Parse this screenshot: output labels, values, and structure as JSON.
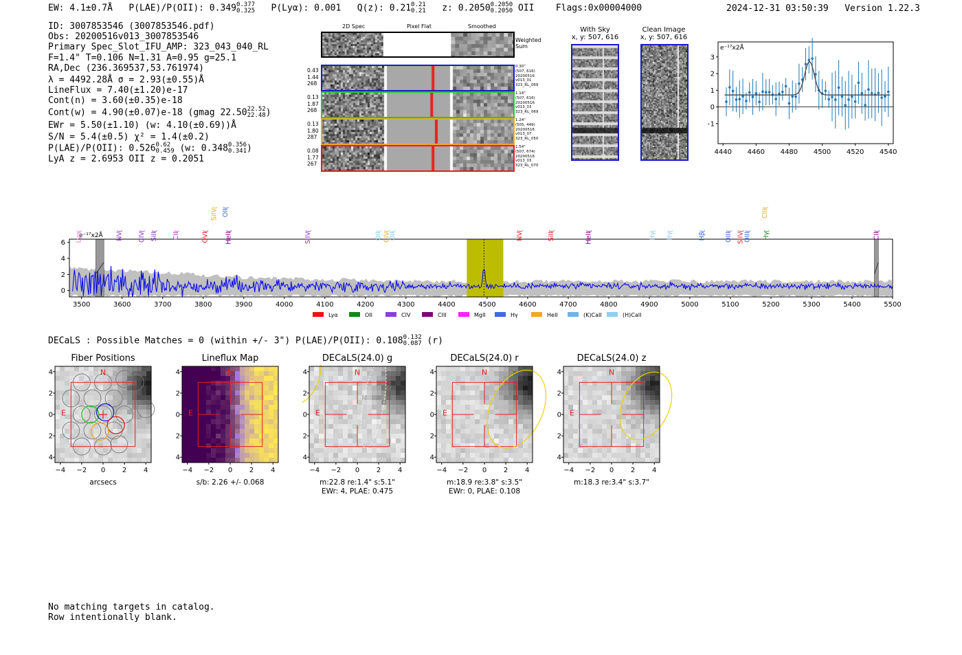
{
  "header": {
    "ew": "EW: 4.1±0.7Å",
    "plae_label": "P(LAE)/P(OII): 0.349",
    "plae_hi": "0.377",
    "plae_lo": "0.325",
    "plya": "P(Lyα): 0.001",
    "q_label": "Q(z): 0.21",
    "q_hi": "0.21",
    "q_lo": "0.21",
    "z_label": "z: 0.2050",
    "z_hi": "0.2050",
    "z_lo": "0.2050",
    "z_line": "OII",
    "flags": "Flags:0x00004000",
    "timestamp": "2024-12-31 03:50:39",
    "version": "Version 1.22.3"
  },
  "info": {
    "id": "ID: 3007853546 (3007853546.pdf)",
    "obs": "Obs: 20200516v013_3007853546",
    "primary": "Primary Spec_Slot_IFU_AMP: 323_043_040_RL",
    "fparams": "F=1.4\"  T=0.106  N=1.31  A=0.95  g=25.1",
    "radec": "RA,Dec (236.369537,53.761974)",
    "lambda": "λ = 4492.28Å  σ = 2.93(±0.55)Å",
    "lineflux": "LineFlux = 7.40(±1.20)e-17",
    "contn": "Cont(n) = 3.60(±0.35)e-18",
    "contw": "Cont(w) = 4.90(±0.07)e-18 (gmag 22.50",
    "gmag_hi": "22.52",
    "gmag_lo": "22.48",
    "ewr": "EWr = 5.50(±1.10) (w: 4.10(±0.69))Å",
    "sn": "S/N = 5.4(±0.5)  χ² = 1.4(±0.2)",
    "plae2": "P(LAE)/P(OII): 0.526",
    "plae2_hi": "0.62",
    "plae2_lo": "0.459",
    "plae2_w": "(w: 0.348",
    "plae2_w_hi": "0.356",
    "plae2_w_lo": "0.341",
    "lyaz": "LyA z = 2.6953  OII z = 0.2051"
  },
  "cutouts": {
    "col_2d": "2D Spec",
    "col_flat": "Pixel Flat",
    "col_smooth": "Smoothed",
    "weighted": "Weighted\nSum",
    "rows": [
      {
        "left": [
          "0.43",
          "1.44",
          "268"
        ],
        "right": [
          "0.30\"",
          "(507, 616)",
          "20200516",
          "v013_01",
          "323_RL_069"
        ],
        "color": "#1a1acc",
        "redpos": 0.7
      },
      {
        "left": [
          "0.13",
          "1.87",
          "268"
        ],
        "right": [
          "1.14\"",
          "(507, 616)",
          "20200516",
          "v013_03",
          "323_RL_069"
        ],
        "color": "#22cc22",
        "redpos": 0.68
      },
      {
        "left": [
          "0.13",
          "1.80",
          "287"
        ],
        "right": [
          "1.24\"",
          "(505, 449)",
          "20200516",
          "v013_07",
          "323_RL_050"
        ],
        "color": "#f5a623",
        "redpos": 0.75
      },
      {
        "left": [
          "0.08",
          "1.77",
          "267"
        ],
        "right": [
          "1.54\"",
          "(507, 674)",
          "20200516",
          "v013_03",
          "323_RL_070"
        ],
        "color": "#e02020",
        "redpos": 0.7
      }
    ]
  },
  "sky": {
    "with_sky_title": "With Sky",
    "with_sky_coords": "x, y: 507, 616",
    "clean_title": "Clean Image",
    "clean_coords": "x, y: 507, 616"
  },
  "zoom_chart": {
    "type": "scatter",
    "ylabel": "e⁻¹⁷x2Å",
    "xlim": [
      4437,
      4543
    ],
    "ylim": [
      -2.2,
      3.9
    ],
    "xticks": [
      4440,
      4460,
      4480,
      4500,
      4520,
      4540
    ],
    "yticks": [
      -1,
      0,
      1,
      2,
      3
    ],
    "fit": {
      "continuum": 0.72,
      "amp": 2.0,
      "center": 4492.3,
      "sigma": 2.93
    }
  },
  "chart_data": {
    "type": "line",
    "title": "",
    "ylabel": "e⁻¹⁷x2Å",
    "xlim": [
      3470,
      5500
    ],
    "ylim": [
      -0.8,
      6.4
    ],
    "xticks": [
      3500,
      3600,
      3700,
      3800,
      3900,
      4000,
      4100,
      4200,
      4300,
      4400,
      4500,
      4600,
      4700,
      4800,
      4900,
      5000,
      5100,
      5200,
      5300,
      5400,
      5500
    ],
    "yticks": [
      0,
      2,
      4,
      6
    ],
    "highlight": [
      4450,
      4540
    ],
    "line_center": 4492.3,
    "masked": [
      [
        3535,
        3555
      ],
      [
        5455,
        5465
      ]
    ],
    "lines": [
      {
        "name": "Lyα",
        "wave": 3493,
        "color": "#e879d8",
        "rot": true
      },
      {
        "name": "NV",
        "wave": 3593,
        "color": "#8b2fc9"
      },
      {
        "name": "CIV",
        "wave": 3648,
        "color": "#8b2fc9"
      },
      {
        "name": "SiII",
        "wave": 3678,
        "color": "#8b2fc9"
      },
      {
        "name": "CII",
        "wave": 3733,
        "color": "#cc33cc"
      },
      {
        "name": "OVI",
        "wave": 3805,
        "color": "#e02020"
      },
      {
        "name": "SiIV",
        "wave": 3827,
        "color": "#f5a623",
        "high": true
      },
      {
        "name": "OII",
        "wave": 3855,
        "color": "#4169e1",
        "high": true
      },
      {
        "name": "HeII",
        "wave": 3862,
        "color": "#800080"
      },
      {
        "name": "SiIV",
        "wave": 4058,
        "color": "#8b2fc9"
      },
      {
        "name": "OII",
        "wave": 4232,
        "color": "#87ceeb"
      },
      {
        "name": "CIV",
        "wave": 4252,
        "color": "#f5a623"
      },
      {
        "name": "OII",
        "wave": 4266,
        "color": "#87ceeb"
      },
      {
        "name": "NV",
        "wave": 4580,
        "color": "#e02020"
      },
      {
        "name": "SiII",
        "wave": 4658,
        "color": "#e02020"
      },
      {
        "name": "HeII",
        "wave": 4750,
        "color": "#800080"
      },
      {
        "name": "Hγ",
        "wave": 4908,
        "color": "#87ceeb"
      },
      {
        "name": "Hγ",
        "wave": 4950,
        "color": "#87ceeb"
      },
      {
        "name": "Hβ",
        "wave": 5030,
        "color": "#4169e1"
      },
      {
        "name": "OIII",
        "wave": 5095,
        "color": "#4169e1"
      },
      {
        "name": "SiIV",
        "wave": 5125,
        "color": "#e02020"
      },
      {
        "name": "OIII",
        "wave": 5142,
        "color": "#4169e1"
      },
      {
        "name": "CIII",
        "wave": 5185,
        "color": "#f5a623",
        "high": true
      },
      {
        "name": "Hγ",
        "wave": 5188,
        "color": "#228b22"
      },
      {
        "name": "CII",
        "wave": 5460,
        "color": "#800080"
      }
    ],
    "legend": [
      {
        "name": "Lyα",
        "color": "#ee1111"
      },
      {
        "name": "OII",
        "color": "#118811"
      },
      {
        "name": "CIV",
        "color": "#8b3fe0"
      },
      {
        "name": "CIII",
        "color": "#7a0a7a"
      },
      {
        "name": "MgII",
        "color": "#ff22ff"
      },
      {
        "name": "Hγ",
        "color": "#4169e1"
      },
      {
        "name": "HeII",
        "color": "#f5a623"
      },
      {
        "name": "(K)CaII",
        "color": "#6cb4ee"
      },
      {
        "name": "(H)CaII",
        "color": "#8fd0f0"
      }
    ]
  },
  "decals": {
    "summary": "DECaLS : Possible Matches = 0 (within +/- 3\")  P(LAE)/P(OII): 0.108",
    "summary_hi": "0.132",
    "summary_lo": "0.087",
    "summary_band": "(r)",
    "panels": [
      {
        "title": "Fiber Positions",
        "caption1": "arcsecs",
        "caption2": ""
      },
      {
        "title": "Lineflux Map",
        "caption1": "s/b: 2.26 +/- 0.068",
        "caption2": ""
      },
      {
        "title": "DECaLS(24.0) g",
        "caption1": "m:22.8  re:1.4\"  s:5.1\"",
        "caption2": "EWr: 4, PLAE: 0.475"
      },
      {
        "title": "DECaLS(24.0) r",
        "caption1": "m:18.9  re:3.8\"  s:3.5\"",
        "caption2": "EWr: 0, PLAE: 0.108"
      },
      {
        "title": "DECaLS(24.0) z",
        "caption1": "m:18.3  re:3.4\"  s:3.7\"",
        "caption2": ""
      }
    ],
    "north": "N",
    "east": "E",
    "ticks": [
      -4,
      -2,
      0,
      2,
      4
    ]
  },
  "footer": {
    "line1": "No matching targets in catalog.",
    "line2": "Row intentionally blank."
  }
}
